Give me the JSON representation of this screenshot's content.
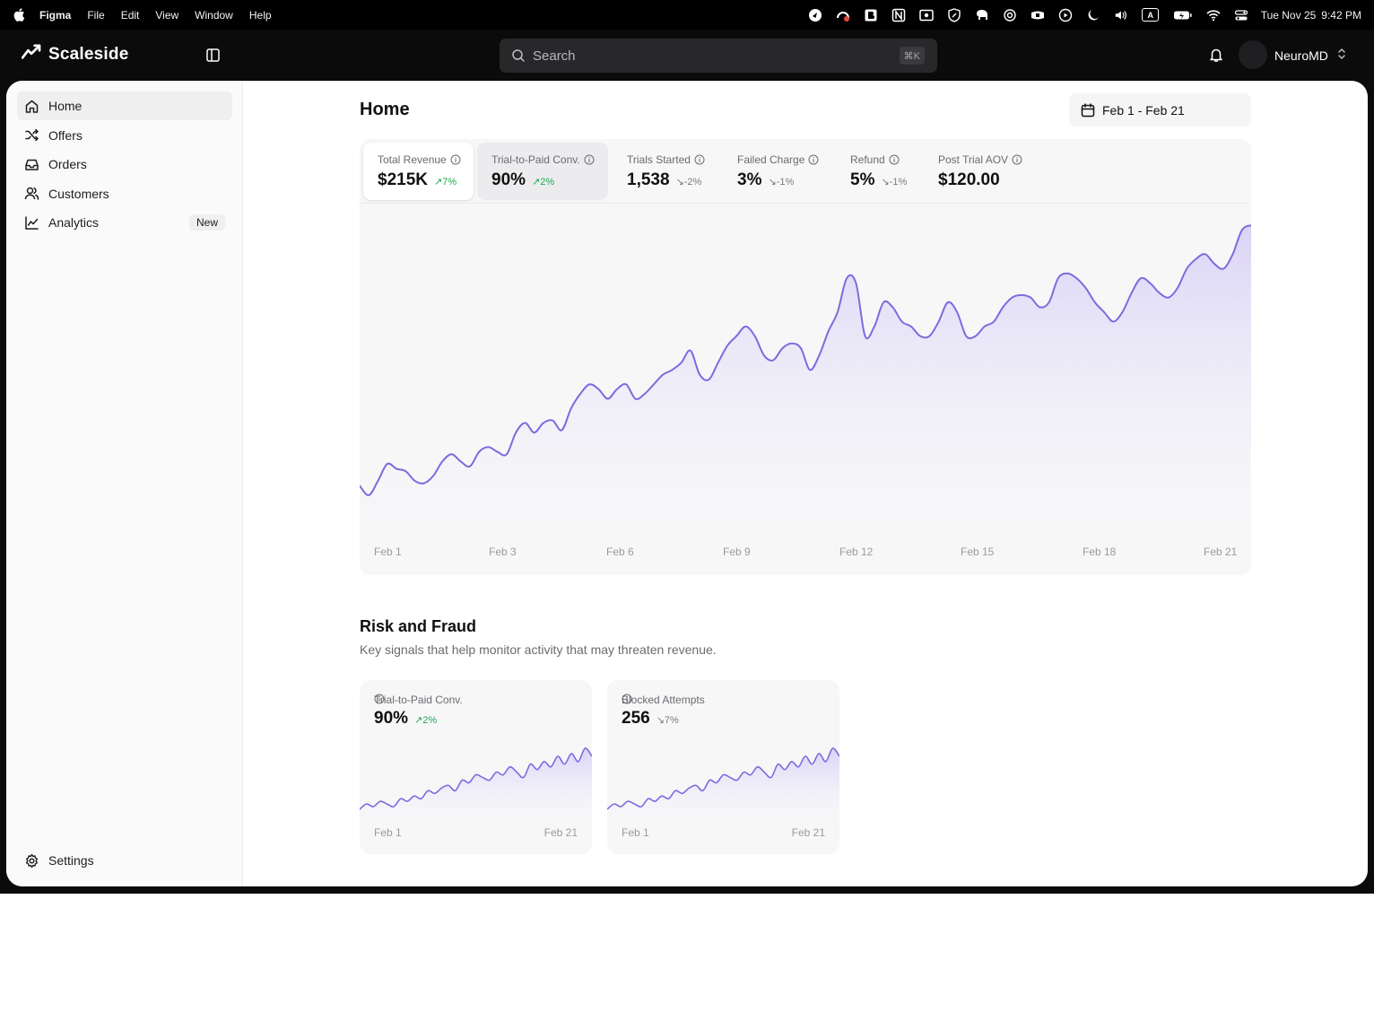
{
  "menubar": {
    "app_name": "Figma",
    "menus": [
      "File",
      "Edit",
      "View",
      "Window",
      "Help"
    ],
    "tray_icons": [
      "status-1-icon",
      "status-2-icon",
      "status-3-icon",
      "status-4-icon",
      "status-5-icon",
      "shield-icon",
      "elephant-icon",
      "openai-icon",
      "bowtie-icon",
      "play-icon",
      "moon-icon",
      "volume-icon",
      "keyboard-a-icon",
      "battery-icon",
      "wifi-icon",
      "control-center-icon"
    ],
    "keyboard_letter": "A",
    "date": "Tue Nov 25",
    "time": "9:42 PM"
  },
  "header": {
    "brand": "Scaleside",
    "search_placeholder": "Search",
    "search_shortcut": "⌘K",
    "org_name": "NeuroMD"
  },
  "sidebar": {
    "items": [
      {
        "label": "Home",
        "icon": "home-icon",
        "active": true
      },
      {
        "label": "Offers",
        "icon": "shuffle-icon"
      },
      {
        "label": "Orders",
        "icon": "inbox-icon"
      },
      {
        "label": "Customers",
        "icon": "users-icon"
      },
      {
        "label": "Analytics",
        "icon": "chart-line-icon",
        "badge": "New"
      }
    ],
    "settings_label": "Settings"
  },
  "main": {
    "title": "Home",
    "date_range": "Feb 1 - Feb 21",
    "kpis": [
      {
        "label": "Total Revenue",
        "value": "$215K",
        "delta": "7%",
        "direction": "up"
      },
      {
        "label": "Trial-to-Paid Conv.",
        "value": "90%",
        "delta": "2%",
        "direction": "up"
      },
      {
        "label": "Trials Started",
        "value": "1,538",
        "delta": "-2%",
        "direction": "down"
      },
      {
        "label": "Failed Charge",
        "value": "3%",
        "delta": "-1%",
        "direction": "down"
      },
      {
        "label": "Refund",
        "value": "5%",
        "delta": "-1%",
        "direction": "down"
      },
      {
        "label": "Post Trial AOV",
        "value": "$120.00",
        "delta": "",
        "direction": ""
      }
    ]
  },
  "chart_data": [
    {
      "type": "area",
      "series_color": "#7c6bde",
      "fill_color": "#e5e0fa",
      "x_tick_labels": [
        "Feb 1",
        "Feb 3",
        "Feb 6",
        "Feb 9",
        "Feb 12",
        "Feb 15",
        "Feb 18",
        "Feb 21"
      ],
      "values": [
        4,
        2,
        5,
        8.5,
        7.5,
        7,
        5,
        4.5,
        6,
        9,
        10.5,
        9,
        8,
        11,
        12,
        11,
        10.5,
        15,
        17,
        15,
        17,
        17.5,
        15.5,
        20,
        23,
        25,
        24,
        22,
        24,
        25,
        22,
        23,
        25,
        27,
        28,
        29.5,
        32,
        27,
        26,
        29.5,
        33,
        35,
        37,
        35,
        31,
        30,
        32.5,
        33.5,
        32.5,
        28,
        31,
        36,
        40,
        47,
        46,
        35,
        37,
        42,
        41,
        38,
        37,
        35,
        35,
        38,
        42,
        40,
        35,
        35,
        37,
        38,
        41,
        43,
        43.5,
        43,
        41,
        42,
        47,
        48,
        47,
        45,
        42,
        40,
        38,
        40,
        44,
        47,
        46,
        44,
        43,
        45,
        49,
        51,
        52,
        50,
        49,
        52,
        57,
        58
      ]
    },
    {
      "type": "area",
      "title": "Trial-to-Paid Conv.",
      "x_tick_labels": [
        "Feb 1",
        "Feb 21"
      ],
      "values": [
        1,
        3,
        2,
        4,
        3,
        2,
        5,
        4,
        6,
        5,
        8,
        7,
        9,
        10,
        8,
        12,
        11,
        14,
        13,
        12,
        15,
        14,
        17,
        15,
        13,
        18,
        16,
        19,
        17,
        21,
        18,
        22,
        19,
        24,
        21
      ]
    },
    {
      "type": "area",
      "title": "Blocked Attempts",
      "x_tick_labels": [
        "Feb 1",
        "Feb 21"
      ],
      "values": [
        1,
        3,
        2,
        4,
        3,
        2,
        5,
        4,
        6,
        5,
        8,
        7,
        9,
        10,
        8,
        12,
        11,
        14,
        13,
        12,
        15,
        14,
        17,
        15,
        13,
        18,
        16,
        19,
        17,
        21,
        18,
        22,
        19,
        24,
        21
      ]
    }
  ],
  "risk": {
    "title": "Risk and Fraud",
    "subtitle": "Key signals that help monitor activity that may threaten revenue.",
    "cards": [
      {
        "label": "Trial-to-Paid Conv.",
        "value": "90%",
        "delta": "2%",
        "direction": "up",
        "x_start": "Feb 1",
        "x_end": "Feb 21"
      },
      {
        "label": "Blocked Attempts",
        "value": "256",
        "delta": "7%",
        "direction": "down",
        "x_start": "Feb 1",
        "x_end": "Feb 21"
      }
    ]
  },
  "colors": {
    "accent": "#7c6bde",
    "positive": "#22a652",
    "neutral_delta": "#7b7b80"
  }
}
